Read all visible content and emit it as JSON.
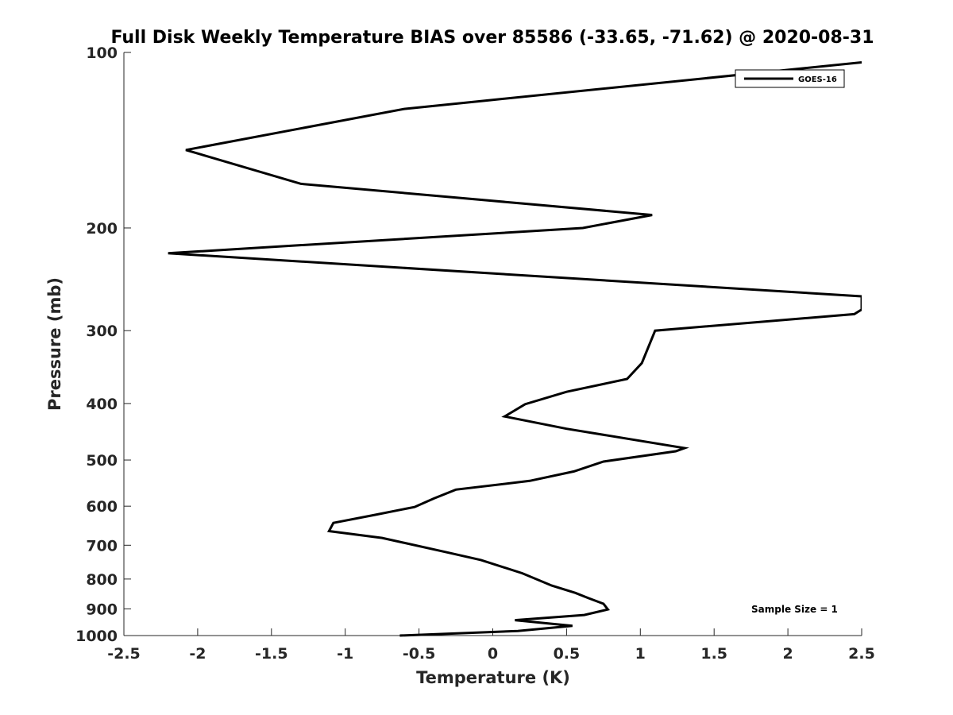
{
  "chart_data": {
    "type": "line",
    "title": "Full Disk Weekly Temperature BIAS over 85586 (-33.65, -71.62) @ 2020-08-31",
    "xlabel": "Temperature (K)",
    "ylabel": "Pressure (mb)",
    "xlim": [
      -2.5,
      2.5
    ],
    "ylim": [
      100,
      1000
    ],
    "y_scale": "log",
    "y_reversed": true,
    "xticks": [
      "-2.5",
      "-2",
      "-1.5",
      "-1",
      "-0.5",
      "0",
      "0.5",
      "1",
      "1.5",
      "2",
      "2.5"
    ],
    "yticks": [
      "100",
      "200",
      "300",
      "400",
      "500",
      "600",
      "700",
      "800",
      "900",
      "1000"
    ],
    "grid": false,
    "legend": {
      "position": "top-right",
      "entries": [
        "GOES-16"
      ]
    },
    "annotation": "Sample Size = 1",
    "series": [
      {
        "name": "GOES-16",
        "color": "#000000",
        "points": [
          {
            "x": 2.5,
            "y": 104
          },
          {
            "x": -0.6,
            "y": 125
          },
          {
            "x": -2.08,
            "y": 147
          },
          {
            "x": -1.3,
            "y": 168
          },
          {
            "x": 1.08,
            "y": 190
          },
          {
            "x": 0.61,
            "y": 200
          },
          {
            "x": -2.2,
            "y": 221
          },
          {
            "x": 2.5,
            "y": 262
          },
          {
            "x": 2.5,
            "y": 276
          },
          {
            "x": 2.45,
            "y": 281
          },
          {
            "x": 1.1,
            "y": 300
          },
          {
            "x": 1.01,
            "y": 341
          },
          {
            "x": 0.91,
            "y": 363
          },
          {
            "x": 0.5,
            "y": 382
          },
          {
            "x": 0.22,
            "y": 401
          },
          {
            "x": 0.08,
            "y": 421
          },
          {
            "x": 0.5,
            "y": 442
          },
          {
            "x": 1.3,
            "y": 477
          },
          {
            "x": 1.24,
            "y": 483
          },
          {
            "x": 0.75,
            "y": 503
          },
          {
            "x": 0.55,
            "y": 523
          },
          {
            "x": 0.25,
            "y": 543
          },
          {
            "x": -0.25,
            "y": 562
          },
          {
            "x": -0.4,
            "y": 582
          },
          {
            "x": -0.53,
            "y": 602
          },
          {
            "x": -0.8,
            "y": 621
          },
          {
            "x": -1.08,
            "y": 641
          },
          {
            "x": -1.11,
            "y": 662
          },
          {
            "x": -0.75,
            "y": 680
          },
          {
            "x": -0.3,
            "y": 721
          },
          {
            "x": -0.08,
            "y": 742
          },
          {
            "x": 0.2,
            "y": 782
          },
          {
            "x": 0.4,
            "y": 821
          },
          {
            "x": 0.56,
            "y": 845
          },
          {
            "x": 0.65,
            "y": 863
          },
          {
            "x": 0.75,
            "y": 882
          },
          {
            "x": 0.78,
            "y": 902
          },
          {
            "x": 0.62,
            "y": 922
          },
          {
            "x": 0.15,
            "y": 941
          },
          {
            "x": 0.54,
            "y": 962
          },
          {
            "x": 0.17,
            "y": 982
          },
          {
            "x": -0.63,
            "y": 1000
          }
        ]
      }
    ]
  }
}
